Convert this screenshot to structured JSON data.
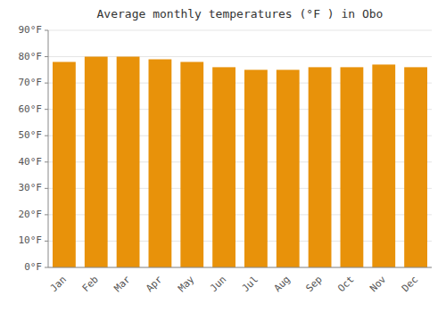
{
  "chart_data": {
    "type": "bar",
    "title": "Average monthly temperatures (°F ) in Obo",
    "categories": [
      "Jan",
      "Feb",
      "Mar",
      "Apr",
      "May",
      "Jun",
      "Jul",
      "Aug",
      "Sep",
      "Oct",
      "Nov",
      "Dec"
    ],
    "values": [
      78,
      80,
      80,
      79,
      78,
      76,
      75,
      75,
      76,
      76,
      77,
      76
    ],
    "color": "#E8920A",
    "ylim": [
      0,
      90
    ],
    "yticks": [
      {
        "value": 0,
        "label": "0°F"
      },
      {
        "value": 10,
        "label": "10°F"
      },
      {
        "value": 20,
        "label": "20°F"
      },
      {
        "value": 30,
        "label": "30°F"
      },
      {
        "value": 40,
        "label": "40°F"
      },
      {
        "value": 50,
        "label": "50°F"
      },
      {
        "value": 60,
        "label": "60°F"
      },
      {
        "value": 70,
        "label": "70°F"
      },
      {
        "value": 80,
        "label": "80°F"
      },
      {
        "value": 90,
        "label": "90°F"
      }
    ],
    "grid": true
  }
}
